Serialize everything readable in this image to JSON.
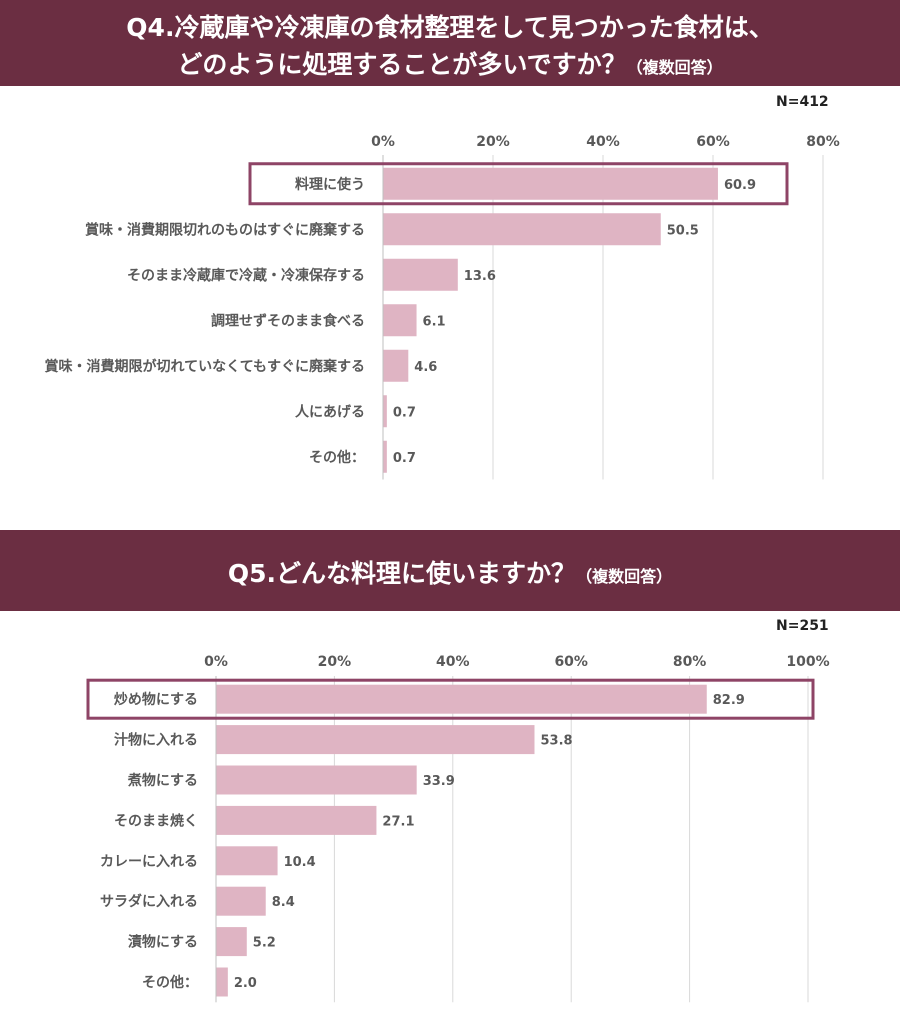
{
  "q4": {
    "title_line1": "Q4.冷蔵庫や冷凍庫の食材整理をして見つかった食材は、",
    "title_line2": "どのように処理することが多いですか？",
    "note": "（複数回答）",
    "n_label": "N=412"
  },
  "q5": {
    "title": "Q5.どんな料理に使いますか？",
    "note": "（複数回答）",
    "n_label": "N=251"
  },
  "colors": {
    "banner": "#6b2e42",
    "bar": "#dfb4c3",
    "highlight": "#8e4466",
    "axis_text": "#595959"
  },
  "chart_data": [
    {
      "type": "bar",
      "orientation": "horizontal",
      "categories": [
        "料理に使う",
        "賞味・消費期限切れのものはすぐに廃棄する",
        "そのまま冷蔵庫で冷蔵・冷凍保存する",
        "調理せずそのまま食べる",
        "賞味・消費期限が切れていなくてもすぐに廃棄する",
        "人にあげる",
        "その他："
      ],
      "values": [
        60.9,
        50.5,
        13.6,
        6.1,
        4.6,
        0.7,
        0.7
      ],
      "value_labels": [
        "60.9",
        "50.5",
        "13.6",
        "6.1",
        "4.6",
        "0.7",
        "0.7"
      ],
      "xlim": [
        0,
        80
      ],
      "ticks": [
        0,
        20,
        40,
        60,
        80
      ],
      "tick_labels": [
        "0%",
        "20%",
        "40%",
        "60%",
        "80%"
      ],
      "highlight_index": 0,
      "grid": true
    },
    {
      "type": "bar",
      "orientation": "horizontal",
      "categories": [
        "炒め物にする",
        "汁物に入れる",
        "煮物にする",
        "そのまま焼く",
        "カレーに入れる",
        "サラダに入れる",
        "漬物にする",
        "その他："
      ],
      "values": [
        82.9,
        53.8,
        33.9,
        27.1,
        10.4,
        8.4,
        5.2,
        2.0
      ],
      "value_labels": [
        "82.9",
        "53.8",
        "33.9",
        "27.1",
        "10.4",
        "8.4",
        "5.2",
        "2.0"
      ],
      "xlim": [
        0,
        100
      ],
      "ticks": [
        0,
        20,
        40,
        60,
        80,
        100
      ],
      "tick_labels": [
        "0%",
        "20%",
        "40%",
        "60%",
        "80%",
        "100%"
      ],
      "highlight_index": 0,
      "grid": true
    }
  ]
}
